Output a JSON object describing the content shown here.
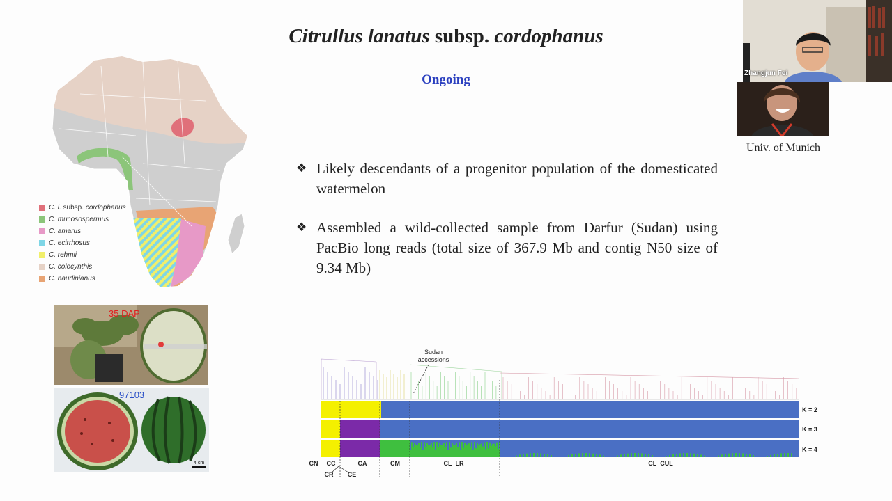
{
  "slide": {
    "title_italic_1": "Citrullus lanatus",
    "title_plain": " subsp. ",
    "title_italic_2": "cordophanus",
    "ongoing": "Ongoing",
    "bullets": [
      "Likely descendants of a progenitor population of the domesticated watermelon",
      "Assembled a wild-collected sample from Darfur (Sudan) using PacBio long reads (total size of 367.9 Mb and contig N50 size of 9.34 Mb)"
    ],
    "bullet_glyph": "❖"
  },
  "legend": {
    "items": [
      {
        "species": "C. l.",
        "suffix": " subsp. ",
        "extra": "cordophanus",
        "color": "#e0707a"
      },
      {
        "species": "C. mucosospermus",
        "suffix": "",
        "extra": "",
        "color": "#8cc57a"
      },
      {
        "species": "C. amarus",
        "suffix": "",
        "extra": "",
        "color": "#e799c7"
      },
      {
        "species": "C. ecirrhosus",
        "suffix": "",
        "extra": "",
        "color": "#7fd6e6"
      },
      {
        "species": "C. rehmii",
        "suffix": "",
        "extra": "",
        "color": "#f1ef6a"
      },
      {
        "species": "C. colocynthis",
        "suffix": "",
        "extra": "",
        "color": "#e6d2c6"
      },
      {
        "species": "C. naudinianus",
        "suffix": "",
        "extra": "",
        "color": "#e8a474"
      }
    ]
  },
  "photos": {
    "top_label": "35 DAP",
    "bottom_label": "97103",
    "scale_label": "4 cm"
  },
  "video": {
    "participant_name": "Zhangjun Fei",
    "caption": "Univ. of Munich"
  },
  "tree": {
    "sudan_line1": "Sudan",
    "sudan_line2": "accessions",
    "k_labels": [
      "K = 2",
      "K = 3",
      "K = 4"
    ],
    "groups": [
      "CN",
      "CC",
      "CA",
      "CM",
      "CL_LR",
      "CL_CUL"
    ],
    "sub_groups": [
      "CR",
      "CE"
    ],
    "colors": {
      "yellow": "#f4f000",
      "blue": "#4a6fc4",
      "purple": "#7b2aa8",
      "green": "#3fbf3f"
    }
  }
}
